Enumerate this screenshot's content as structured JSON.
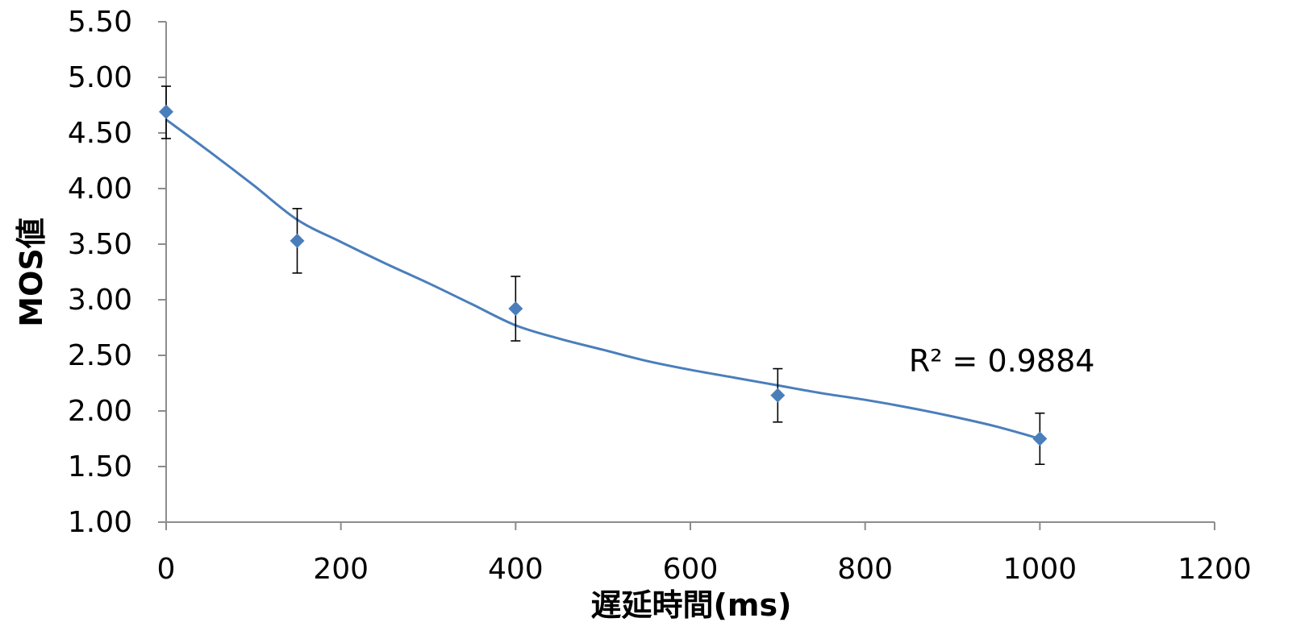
{
  "chart_data": {
    "type": "scatter",
    "xlabel": "遅延時間(ms)",
    "ylabel": "MOS値",
    "xlim": [
      0,
      1200
    ],
    "ylim": [
      1.0,
      5.5
    ],
    "x_ticks": [
      0,
      200,
      400,
      600,
      800,
      1000,
      1200
    ],
    "x_tick_labels": [
      "0",
      "200",
      "400",
      "600",
      "800",
      "1000",
      "1200"
    ],
    "y_ticks": [
      1.0,
      1.5,
      2.0,
      2.5,
      3.0,
      3.5,
      4.0,
      4.5,
      5.0,
      5.5
    ],
    "y_tick_labels": [
      "1.00",
      "1.50",
      "2.00",
      "2.50",
      "3.00",
      "3.50",
      "4.00",
      "4.50",
      "5.00",
      "5.50"
    ],
    "grid": false,
    "series": [
      {
        "marker": "diamond",
        "color": "#4A7EBB",
        "x": [
          0,
          150,
          400,
          700,
          1000
        ],
        "y": [
          4.69,
          3.53,
          2.92,
          2.14,
          1.75
        ],
        "error_low": [
          4.45,
          3.24,
          2.63,
          1.9,
          1.52
        ],
        "error_high": [
          4.92,
          3.82,
          3.21,
          2.38,
          1.98
        ]
      }
    ],
    "trendline": {
      "type": "polynomial",
      "color": "#4A7EBB",
      "points": [
        [
          0,
          4.62
        ],
        [
          50,
          4.33
        ],
        [
          100,
          4.03
        ],
        [
          150,
          3.72
        ],
        [
          200,
          3.52
        ],
        [
          250,
          3.33
        ],
        [
          300,
          3.15
        ],
        [
          350,
          2.96
        ],
        [
          400,
          2.77
        ],
        [
          450,
          2.65
        ],
        [
          500,
          2.55
        ],
        [
          550,
          2.45
        ],
        [
          600,
          2.37
        ],
        [
          650,
          2.3
        ],
        [
          700,
          2.23
        ],
        [
          750,
          2.16
        ],
        [
          800,
          2.1
        ],
        [
          850,
          2.03
        ],
        [
          900,
          1.95
        ],
        [
          950,
          1.86
        ],
        [
          1000,
          1.75
        ]
      ]
    },
    "annotations": [
      {
        "text": "R² = 0.9884",
        "x": 850,
        "y": 2.45
      }
    ]
  }
}
